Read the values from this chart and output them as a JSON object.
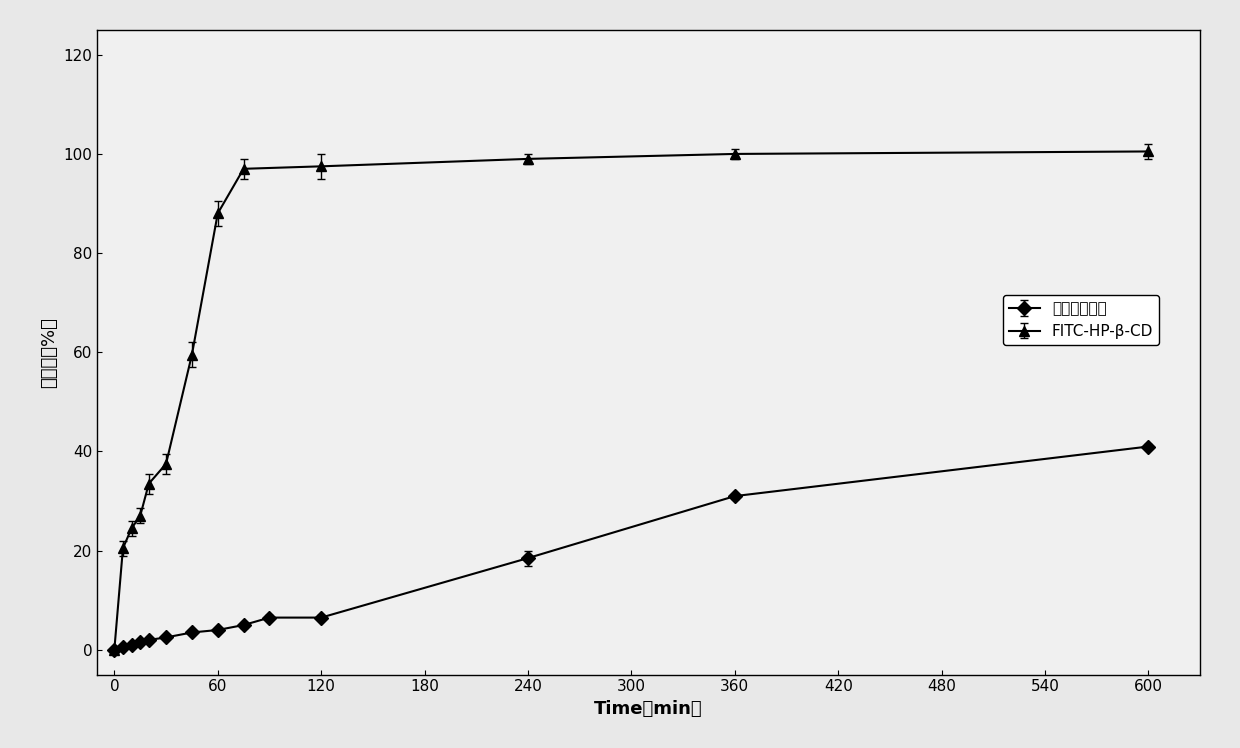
{
  "series1_label": "环糖精脂质体",
  "series1_x": [
    0,
    5,
    10,
    15,
    20,
    30,
    45,
    60,
    75,
    90,
    120,
    240,
    360,
    600
  ],
  "series1_y": [
    0,
    0.5,
    1.0,
    1.5,
    2.0,
    2.5,
    3.5,
    4.0,
    5.0,
    6.5,
    6.5,
    18.5,
    31.0,
    41.0
  ],
  "series1_yerr": [
    0.0,
    0.3,
    0.3,
    0.3,
    0.3,
    0.3,
    0.3,
    0.5,
    0.5,
    0.5,
    0.5,
    1.5,
    0.5,
    0.5
  ],
  "series2_label": "FITC-HP-β-CD",
  "series2_x": [
    0,
    5,
    10,
    15,
    20,
    30,
    45,
    60,
    75,
    120,
    240,
    360,
    600
  ],
  "series2_y": [
    0,
    20.5,
    24.5,
    27.0,
    33.5,
    37.5,
    59.5,
    88.0,
    97.0,
    97.5,
    99.0,
    100.0,
    100.5
  ],
  "series2_yerr": [
    0.0,
    1.5,
    1.5,
    1.5,
    2.0,
    2.0,
    2.5,
    2.5,
    2.0,
    2.5,
    1.0,
    1.0,
    1.5
  ],
  "xlabel": "Time（min）",
  "ylabel": "释放度（%）",
  "xlim": [
    -10,
    630
  ],
  "ylim": [
    -5,
    125
  ],
  "xticks": [
    0,
    60,
    120,
    180,
    240,
    300,
    360,
    420,
    480,
    540,
    600
  ],
  "yticks": [
    0,
    20,
    40,
    60,
    80,
    100,
    120
  ],
  "color": "#000000",
  "background_color": "#e8e8e8",
  "plot_bg_color": "#f0f0f0",
  "marker1": "D",
  "marker2": "^",
  "linewidth": 1.5,
  "markersize": 7,
  "capsize": 3,
  "fontsize_label": 13,
  "fontsize_tick": 11,
  "fontsize_legend": 11
}
